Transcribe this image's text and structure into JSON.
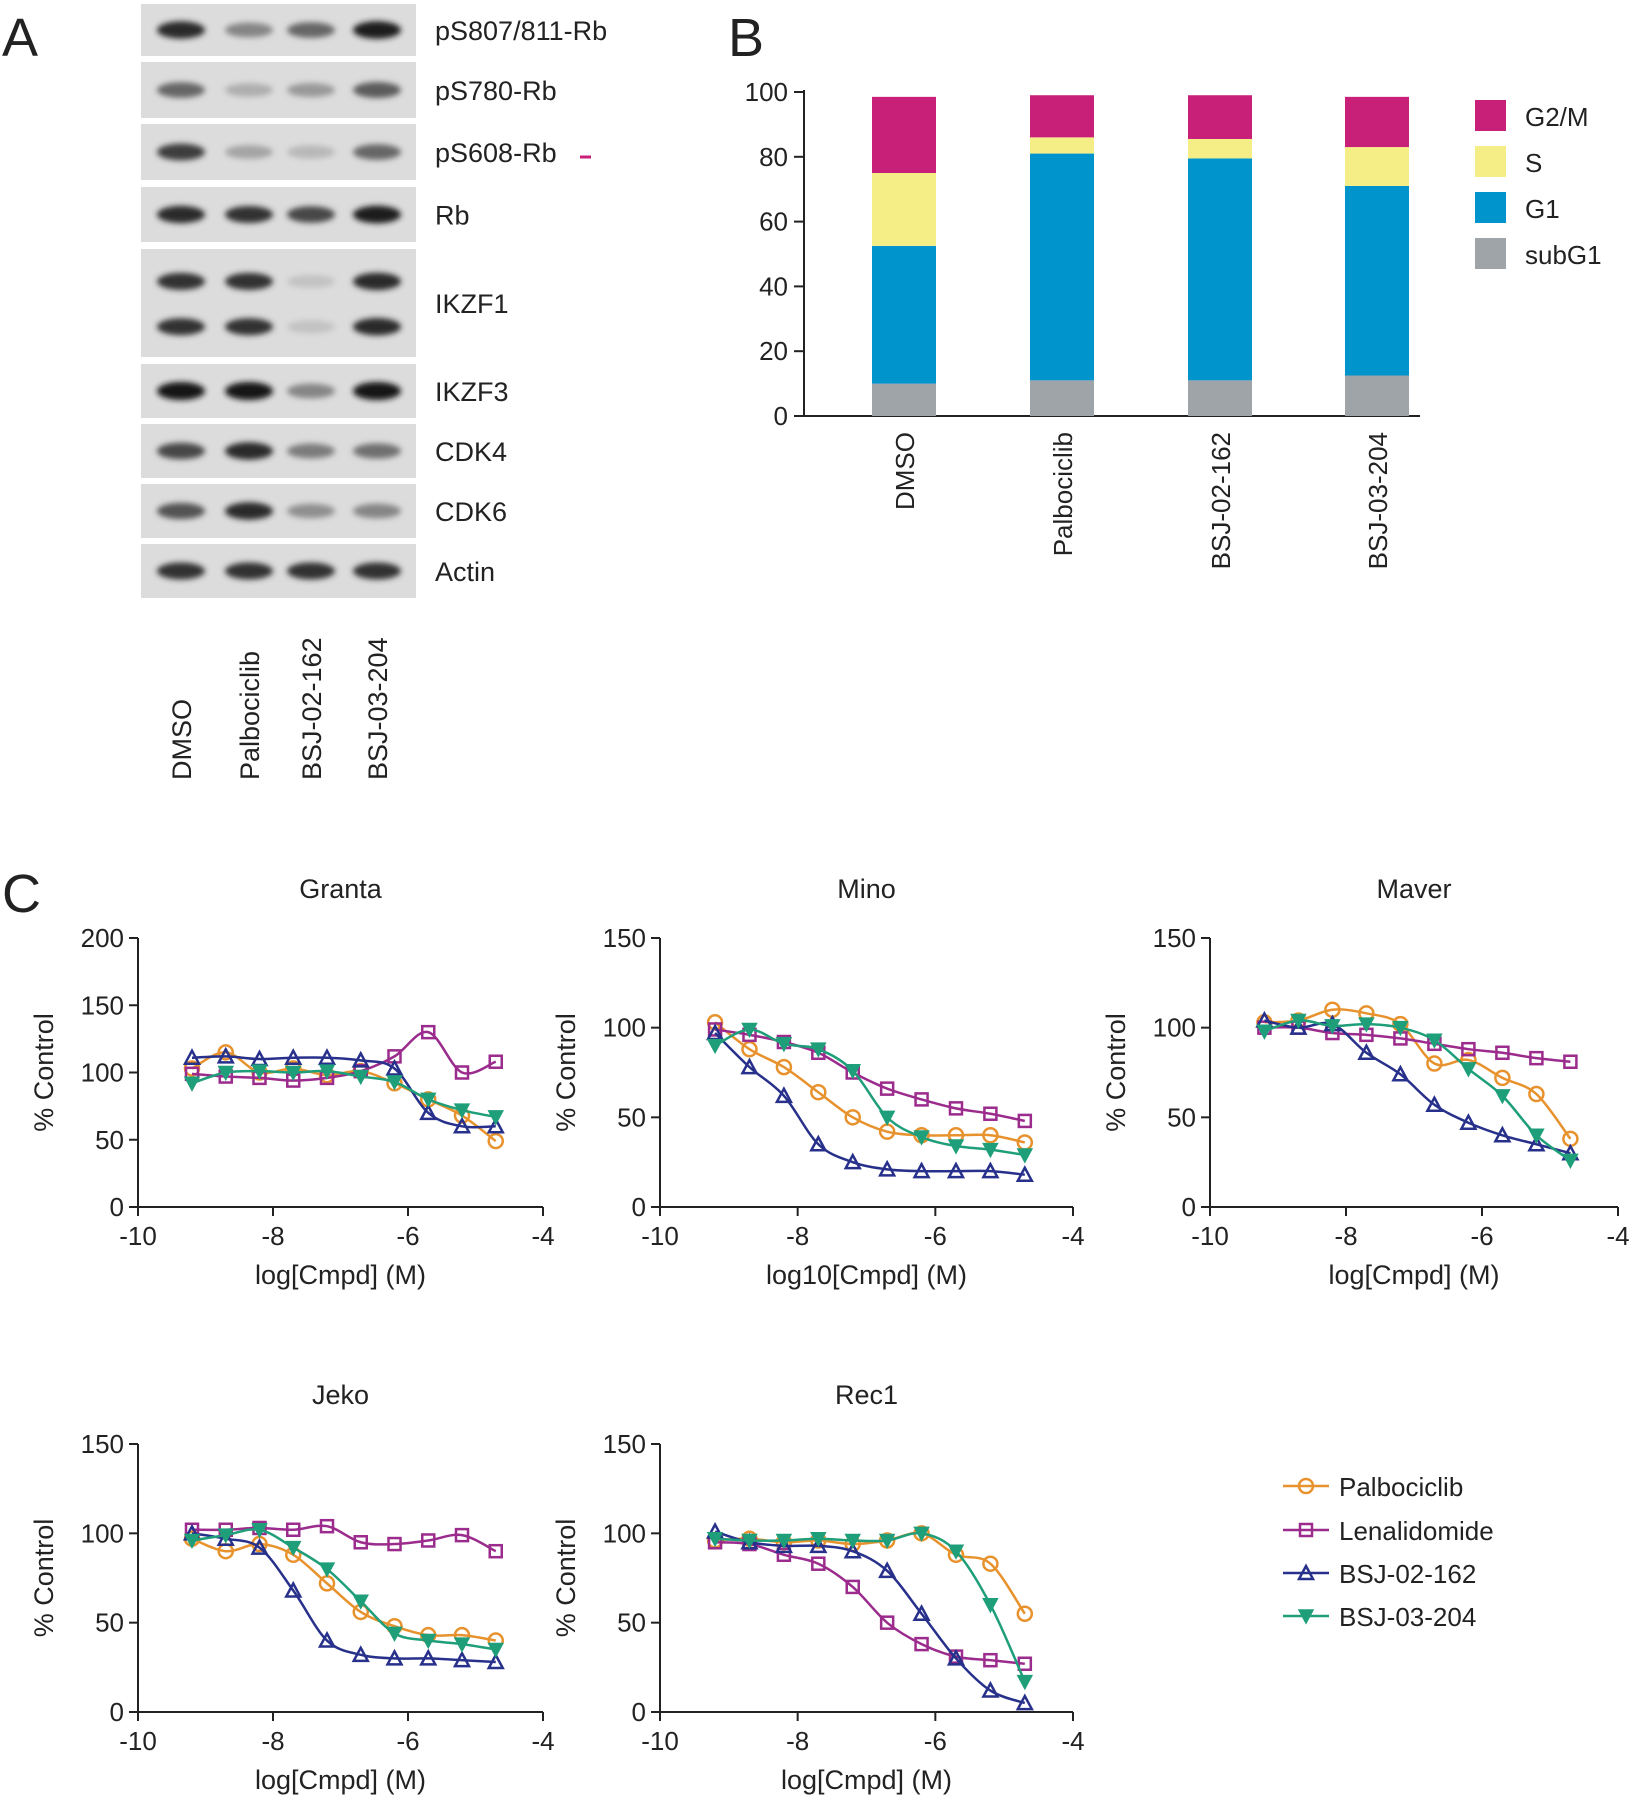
{
  "panels": {
    "a": "A",
    "b": "B",
    "c": "C"
  },
  "blot": {
    "samples": [
      "DMSO",
      "Palbociclib",
      "BSJ-02-162",
      "BSJ-03-204"
    ],
    "rows": [
      {
        "label": "pS807/811-Rb",
        "bands": [
          0.9,
          0.45,
          0.6,
          0.95
        ],
        "lanes_of_bands": 1
      },
      {
        "label": "pS780-Rb",
        "bands": [
          0.6,
          0.25,
          0.35,
          0.65
        ],
        "lanes_of_bands": 1
      },
      {
        "label": "pS608-Rb",
        "bands": [
          0.8,
          0.3,
          0.2,
          0.6
        ],
        "lanes_of_bands": 1
      },
      {
        "label": "Rb",
        "bands": [
          0.9,
          0.85,
          0.75,
          0.95
        ],
        "lanes_of_bands": 1
      },
      {
        "label": "IKZF1",
        "bands": [
          0.85,
          0.85,
          0.15,
          0.9
        ],
        "lanes_of_bands": 2
      },
      {
        "label": "IKZF3",
        "bands": [
          1.0,
          1.0,
          0.45,
          1.0
        ],
        "lanes_of_bands": 1
      },
      {
        "label": "CDK4",
        "bands": [
          0.75,
          0.9,
          0.5,
          0.55
        ],
        "lanes_of_bands": 1
      },
      {
        "label": "CDK6",
        "bands": [
          0.7,
          0.9,
          0.4,
          0.45
        ],
        "lanes_of_bands": 1
      },
      {
        "label": "Actin",
        "bands": [
          0.85,
          0.85,
          0.85,
          0.85
        ],
        "lanes_of_bands": 1
      }
    ]
  },
  "colors": {
    "g2m": "#c81f78",
    "s": "#f5ee87",
    "g1": "#0094cc",
    "subg1": "#9ea4a8",
    "palbociclib": "#e8922e",
    "lenalidomide": "#9b2b8c",
    "bsj02": "#27308a",
    "bsj03": "#1f9e7a"
  },
  "chart_data": [
    {
      "type": "bar",
      "stacked": true,
      "categories": [
        "DMSO",
        "Palbociclib",
        "BSJ-02-162",
        "BSJ-03-204"
      ],
      "series": [
        {
          "name": "subG1",
          "values": [
            10,
            11,
            11,
            12.5
          ]
        },
        {
          "name": "G1",
          "values": [
            42.5,
            70,
            68.5,
            58.5
          ]
        },
        {
          "name": "S",
          "values": [
            22.5,
            5,
            6,
            12
          ]
        },
        {
          "name": "G2/M",
          "values": [
            23.5,
            13,
            13.5,
            15.5
          ]
        }
      ],
      "legend": [
        "G2/M",
        "S",
        "G1",
        "subG1"
      ],
      "ylim": [
        0,
        100
      ],
      "yticks": [
        "0",
        "20",
        "40",
        "60",
        "80",
        "100"
      ]
    },
    {
      "type": "line",
      "title": "Granta",
      "xlabel": "log[Cmpd] (M)",
      "ylabel": "% Control",
      "xlim": [
        -10,
        -4
      ],
      "ylim": [
        0,
        200
      ],
      "xticks": [
        "-10",
        "-8",
        "-6",
        "-4"
      ],
      "yticks": [
        "0",
        "50",
        "100",
        "150",
        "200"
      ],
      "x": [
        -9.2,
        -8.7,
        -8.2,
        -7.7,
        -7.2,
        -6.7,
        -6.2,
        -5.7,
        -5.2,
        -4.7
      ],
      "series": [
        {
          "name": "Palbociclib",
          "values": [
            103,
            115,
            100,
            103,
            98,
            101,
            92,
            80,
            68,
            49
          ]
        },
        {
          "name": "Lenalidomide",
          "values": [
            99,
            97,
            96,
            94,
            96,
            101,
            112,
            130,
            100,
            108
          ]
        },
        {
          "name": "BSJ-02-162",
          "values": [
            111,
            112,
            110,
            111,
            111,
            109,
            103,
            70,
            60,
            60
          ]
        },
        {
          "name": "BSJ-03-204",
          "values": [
            92,
            100,
            101,
            100,
            101,
            97,
            93,
            80,
            72,
            67
          ]
        }
      ]
    },
    {
      "type": "line",
      "title": "Mino",
      "xlabel": "log10[Cmpd] (M)",
      "ylabel": "% Control",
      "xlim": [
        -10,
        -4
      ],
      "ylim": [
        0,
        150
      ],
      "xticks": [
        "-10",
        "-8",
        "-6",
        "-4"
      ],
      "yticks": [
        "0",
        "50",
        "100",
        "150"
      ],
      "x": [
        -9.2,
        -8.7,
        -8.2,
        -7.7,
        -7.2,
        -6.7,
        -6.2,
        -5.7,
        -5.2,
        -4.7
      ],
      "series": [
        {
          "name": "Palbociclib",
          "values": [
            103,
            88,
            78,
            64,
            50,
            42,
            40,
            40,
            40,
            36
          ]
        },
        {
          "name": "Lenalidomide",
          "values": [
            99,
            96,
            92,
            86,
            75,
            66,
            60,
            55,
            52,
            48
          ]
        },
        {
          "name": "BSJ-02-162",
          "values": [
            97,
            78,
            62,
            35,
            25,
            21,
            20,
            20,
            20,
            18
          ]
        },
        {
          "name": "BSJ-03-204",
          "values": [
            90,
            99,
            91,
            88,
            76,
            50,
            39,
            34,
            32,
            29
          ]
        }
      ]
    },
    {
      "type": "line",
      "title": "Maver",
      "xlabel": "log[Cmpd] (M)",
      "ylabel": "% Control",
      "xlim": [
        -10,
        -4
      ],
      "ylim": [
        0,
        150
      ],
      "xticks": [
        "-10",
        "-8",
        "-6",
        "-4"
      ],
      "yticks": [
        "0",
        "50",
        "100",
        "150"
      ],
      "x": [
        -9.2,
        -8.7,
        -8.2,
        -7.7,
        -7.2,
        -6.7,
        -6.2,
        -5.7,
        -5.2,
        -4.7
      ],
      "series": [
        {
          "name": "Palbociclib",
          "values": [
            103,
            104,
            110,
            108,
            102,
            80,
            82,
            72,
            63,
            38
          ]
        },
        {
          "name": "Lenalidomide",
          "values": [
            100,
            100,
            97,
            96,
            94,
            91,
            88,
            86,
            83,
            81
          ]
        },
        {
          "name": "BSJ-02-162",
          "values": [
            104,
            100,
            102,
            86,
            74,
            57,
            47,
            40,
            35,
            30
          ]
        },
        {
          "name": "BSJ-03-204",
          "values": [
            98,
            104,
            101,
            102,
            100,
            93,
            77,
            62,
            40,
            26
          ]
        }
      ]
    },
    {
      "type": "line",
      "title": "Jeko",
      "xlabel": "log[Cmpd] (M)",
      "ylabel": "% Control",
      "xlim": [
        -10,
        -4
      ],
      "ylim": [
        0,
        150
      ],
      "xticks": [
        "-10",
        "-8",
        "-6",
        "-4"
      ],
      "yticks": [
        "0",
        "50",
        "100",
        "150"
      ],
      "x": [
        -9.2,
        -8.7,
        -8.2,
        -7.7,
        -7.2,
        -6.7,
        -6.2,
        -5.7,
        -5.2,
        -4.7
      ],
      "series": [
        {
          "name": "Palbociclib",
          "values": [
            97,
            90,
            94,
            88,
            72,
            56,
            48,
            43,
            43,
            40
          ]
        },
        {
          "name": "Lenalidomide",
          "values": [
            102,
            102,
            103,
            102,
            104,
            95,
            94,
            96,
            99,
            90
          ]
        },
        {
          "name": "BSJ-02-162",
          "values": [
            100,
            97,
            92,
            68,
            40,
            32,
            30,
            30,
            29,
            28
          ]
        },
        {
          "name": "BSJ-03-204",
          "values": [
            96,
            99,
            102,
            92,
            80,
            62,
            44,
            40,
            38,
            35
          ]
        }
      ]
    },
    {
      "type": "line",
      "title": "Rec1",
      "xlabel": "log[Cmpd] (M)",
      "ylabel": "% Control",
      "xlim": [
        -10,
        -4
      ],
      "ylim": [
        0,
        150
      ],
      "xticks": [
        "-10",
        "-8",
        "-6",
        "-4"
      ],
      "yticks": [
        "0",
        "50",
        "100",
        "150"
      ],
      "x": [
        -9.2,
        -8.7,
        -8.2,
        -7.7,
        -7.2,
        -6.7,
        -6.2,
        -5.7,
        -5.2,
        -4.7
      ],
      "series": [
        {
          "name": "Palbociclib",
          "values": [
            96,
            97,
            95,
            96,
            94,
            96,
            100,
            88,
            83,
            55
          ]
        },
        {
          "name": "Lenalidomide",
          "values": [
            95,
            94,
            88,
            83,
            70,
            50,
            38,
            31,
            29,
            27
          ]
        },
        {
          "name": "BSJ-02-162",
          "values": [
            101,
            95,
            93,
            93,
            90,
            79,
            55,
            30,
            12,
            5
          ]
        },
        {
          "name": "BSJ-03-204",
          "values": [
            97,
            96,
            96,
            97,
            96,
            96,
            100,
            90,
            60,
            17
          ]
        }
      ]
    }
  ],
  "legend_c": [
    "Palbociclib",
    "Lenalidomide",
    "BSJ-02-162",
    "BSJ-03-204"
  ]
}
